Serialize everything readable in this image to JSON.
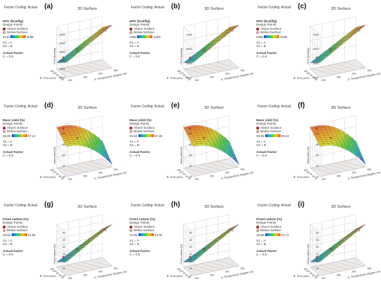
{
  "panels": [
    {
      "id": "a",
      "label": "(a)",
      "row": 0,
      "col": 0,
      "legend": true,
      "legend_side": "left",
      "legend_left": false,
      "title": "3D Surface",
      "factor_coding": "Factor Coding: Actual",
      "resp": "HHV (kcal/kg)",
      "lo": "4210",
      "hi": "6086",
      "ylab": "HHV (kcal/kg)",
      "ticks": [
        "6500",
        "6000",
        "5500",
        "5000",
        "4500",
        "4000"
      ],
      "shape": "hhv"
    },
    {
      "id": "b",
      "label": "(b)",
      "row": 0,
      "col": 1,
      "legend": true,
      "legend_side": "left",
      "title": "3D Surface",
      "factor_coding": "Factor Coding: Actual",
      "resp": "HHV (kcal/kg)",
      "lo": "4389",
      "hi": "6483",
      "ylab": "HHV (kcal/kg)",
      "ticks": [
        "7000",
        "6000",
        "5000",
        "4000"
      ],
      "shape": "hhv"
    },
    {
      "id": "c",
      "label": "(c)",
      "row": 0,
      "col": 2,
      "legend": true,
      "legend_side": "left",
      "title": "3D Surface",
      "factor_coding": "Factor Coding: Actual",
      "resp": "HHV (kcal/kg)",
      "lo": "4395",
      "hi": "6286",
      "ylab": "HHV (kcal/kg)",
      "ticks": [
        "7000",
        "6000",
        "5000",
        "4000"
      ],
      "shape": "hhv"
    },
    {
      "id": "d",
      "label": "(d)",
      "row": 1,
      "col": 0,
      "legend": true,
      "legend_side": "left",
      "title": "3D Surface",
      "factor_coding": "Factor Coding: Actual",
      "resp": "Mass yield (%)",
      "lo": "38.25",
      "hi": "97.12",
      "ylab": "Mass yield (%)",
      "ticks": [
        "100",
        "80",
        "60",
        "40",
        "20"
      ],
      "shape": "mass"
    },
    {
      "id": "e",
      "label": "(e)",
      "row": 1,
      "col": 1,
      "legend": true,
      "legend_side": "left",
      "title": "3D Surface",
      "factor_coding": "Factor Coding: Actual",
      "resp": "Mass yield (%)",
      "lo": "36.52",
      "hi": "97.36",
      "ylab": "Mass yield (%)",
      "ticks": [
        "100",
        "80",
        "60",
        "40",
        "20"
      ],
      "shape": "mass"
    },
    {
      "id": "f",
      "label": "(f)",
      "row": 1,
      "col": 2,
      "legend": true,
      "legend_side": "left",
      "title": "3D Surface",
      "factor_coding": "Factor Coding: Actual",
      "resp": "Mass yield (%)",
      "lo": "39.05",
      "hi": "99.13",
      "ylab": "Mass yield (%)",
      "ticks": [
        "100",
        "80",
        "60",
        "40",
        "20"
      ],
      "shape": "mass"
    },
    {
      "id": "g",
      "label": "(g)",
      "row": 2,
      "col": 0,
      "legend": true,
      "legend_side": "left",
      "title": "3D Surface",
      "factor_coding": "Factor Coding: Actual",
      "resp": "Fixed carbon (%)",
      "lo": "15.96",
      "hi": "31.98",
      "ylab": "Fixed carbon (%)",
      "ticks": [
        "40",
        "35",
        "30",
        "25",
        "20",
        "15",
        "10"
      ],
      "shape": "fc"
    },
    {
      "id": "h",
      "label": "(h)",
      "row": 2,
      "col": 1,
      "legend": true,
      "legend_side": "left",
      "title": "3D Surface",
      "factor_coding": "Factor Coding: Actual",
      "resp": "Fixed carbon (%)",
      "lo": "16.98",
      "hi": "33.09",
      "ylab": "Fixed carbon (%)",
      "ticks": [
        "40",
        "35",
        "30",
        "25",
        "20",
        "15",
        "10"
      ],
      "shape": "fc"
    },
    {
      "id": "i",
      "label": "(i)",
      "row": 2,
      "col": 2,
      "legend": true,
      "legend_side": "left",
      "title": "3D Surface",
      "factor_coding": "Factor Coding: Actual",
      "resp": "Fixed carbon (%)",
      "lo": "16.98",
      "hi": "33.72",
      "ylab": "Fixed carbon (%)",
      "ticks": [
        "40",
        "35",
        "30",
        "25",
        "20",
        "15",
        "10"
      ],
      "shape": "fc"
    }
  ],
  "common": {
    "design_points": "Design Points:",
    "above": "Above Surface",
    "below": "Below Surface",
    "x1": "X1 = A",
    "x2": "X2 = B",
    "actual_factor": "Actual Factor",
    "c": "C = 0.8",
    "xaxis": "A: Temperature (degree celsius)",
    "zaxis": "B: Time (min)",
    "temp_ticks": [
      "200",
      "250",
      "300",
      "350"
    ],
    "time_ticks": [
      "30",
      "60",
      "90",
      "120",
      "150"
    ]
  },
  "chart_data": [
    {
      "type": "surface",
      "title": "3D Surface",
      "xlabel": "A: Temperature (degree celsius)",
      "ylabel": "HHV (kcal/kg)",
      "zlabel": "B: Time (min)",
      "color_range": [
        4210,
        6086
      ],
      "actual_factor": "C = 0.8"
    },
    {
      "type": "surface",
      "title": "3D Surface",
      "xlabel": "A: Temperature (degree celsius)",
      "ylabel": "HHV (kcal/kg)",
      "zlabel": "B: Time (min)",
      "color_range": [
        4389,
        6483
      ],
      "actual_factor": "C = 0.8"
    },
    {
      "type": "surface",
      "title": "3D Surface",
      "xlabel": "A: Temperature (degree celsius)",
      "ylabel": "HHV (kcal/kg)",
      "zlabel": "B: Time (min)",
      "color_range": [
        4395,
        6286
      ],
      "actual_factor": "C = 0.8"
    },
    {
      "type": "surface",
      "title": "3D Surface",
      "xlabel": "A: Temperature (degree celsius)",
      "ylabel": "Mass yield (%)",
      "zlabel": "B: Time (min)",
      "color_range": [
        38.25,
        97.12
      ],
      "actual_factor": "C = 0.8"
    },
    {
      "type": "surface",
      "title": "3D Surface",
      "xlabel": "A: Temperature (degree celsius)",
      "ylabel": "Mass yield (%)",
      "zlabel": "B: Time (min)",
      "color_range": [
        36.52,
        97.36
      ],
      "actual_factor": "C = 0.8"
    },
    {
      "type": "surface",
      "title": "3D Surface",
      "xlabel": "A: Temperature (degree celsius)",
      "ylabel": "Mass yield (%)",
      "zlabel": "B: Time (min)",
      "color_range": [
        39.05,
        99.13
      ],
      "actual_factor": "C = 0.8"
    },
    {
      "type": "surface",
      "title": "3D Surface",
      "xlabel": "A: Temperature (degree celsius)",
      "ylabel": "Fixed carbon (%)",
      "zlabel": "B: Time (min)",
      "color_range": [
        15.96,
        31.98
      ],
      "actual_factor": "C = 0.8"
    },
    {
      "type": "surface",
      "title": "3D Surface",
      "xlabel": "A: Temperature (degree celsius)",
      "ylabel": "Fixed carbon (%)",
      "zlabel": "B: Time (min)",
      "color_range": [
        16.98,
        33.09
      ],
      "actual_factor": "C = 0.8"
    },
    {
      "type": "surface",
      "title": "3D Surface",
      "xlabel": "A: Temperature (degree celsius)",
      "ylabel": "Fixed carbon (%)",
      "zlabel": "B: Time (min)",
      "color_range": [
        16.98,
        33.72
      ],
      "actual_factor": "C = 0.8"
    }
  ]
}
